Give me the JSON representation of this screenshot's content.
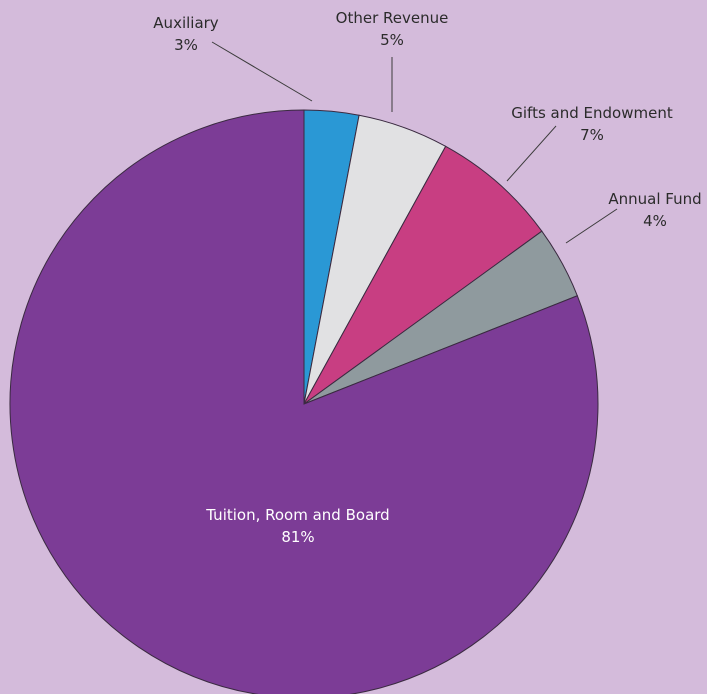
{
  "page": {
    "background": "#d4bbdb"
  },
  "chart_data": {
    "type": "pie",
    "title": "",
    "legend": "none",
    "start_angle_deg": 0,
    "direction": "clockwise",
    "slices": [
      {
        "name": "Auxiliary",
        "value": 3,
        "label": "3%",
        "color": "#2a98d5",
        "label_color": "#2b2b2b"
      },
      {
        "name": "Other Revenue",
        "value": 5,
        "label": "5%",
        "color": "#e1e1e3",
        "label_color": "#2b2b2b"
      },
      {
        "name": "Gifts and Endowment",
        "value": 7,
        "label": "7%",
        "color": "#c83e82",
        "label_color": "#2b2b2b"
      },
      {
        "name": "Annual Fund",
        "value": 4,
        "label": "4%",
        "color": "#8f9a9e",
        "label_color": "#2b2b2b"
      },
      {
        "name": "Tuition, Room and Board",
        "value": 81,
        "label": "81%",
        "color": "#7c3c96",
        "label_color": "#ffffff"
      }
    ]
  }
}
